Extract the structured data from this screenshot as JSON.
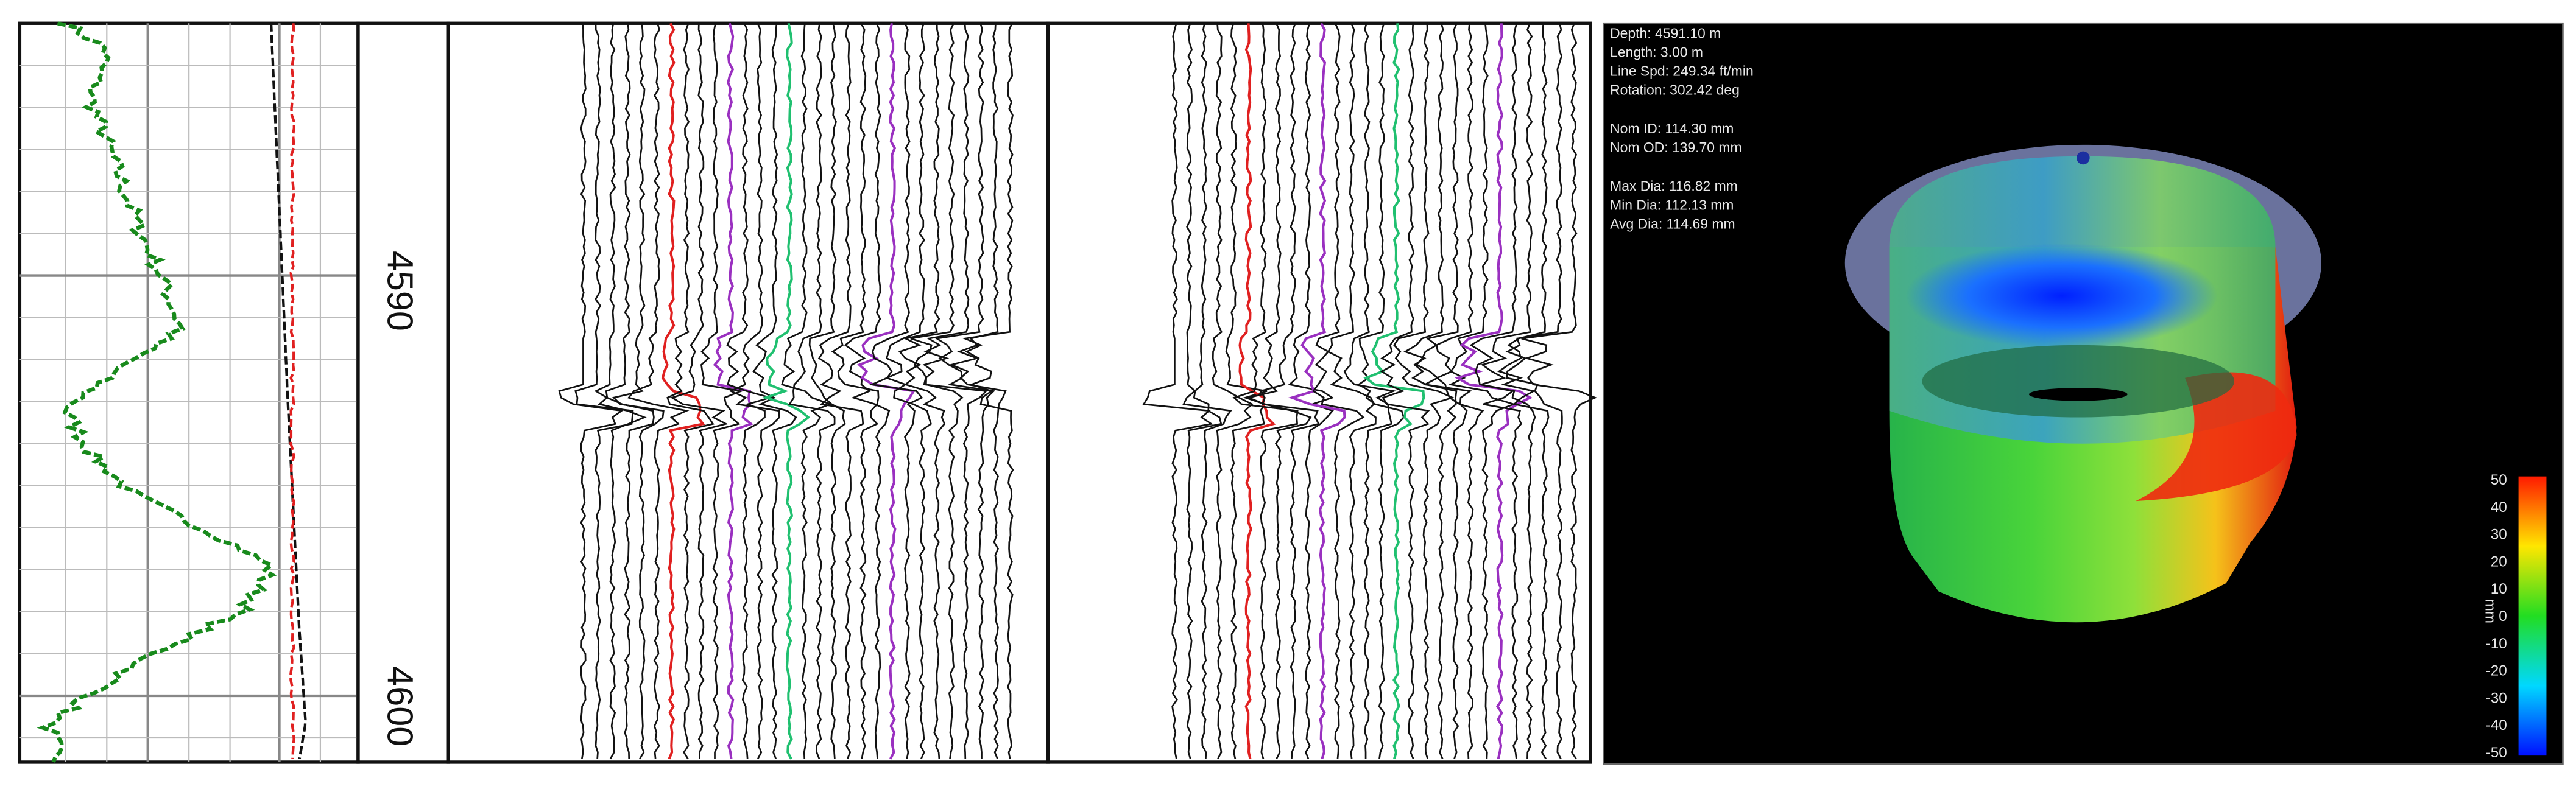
{
  "depth_track": {
    "labels": [
      "4590",
      "4600"
    ]
  },
  "viewer": {
    "info": [
      [
        "Depth: 4591.10 m",
        "Length: 3.00 m",
        "Line Spd: 249.34 ft/min",
        "Rotation: 302.42 deg"
      ],
      [
        "Nom ID: 114.30 mm",
        "Nom OD: 139.70 mm"
      ],
      [
        "Max Dia: 116.82 mm",
        "Min Dia: 112.13 mm",
        "Avg Dia: 114.69 mm"
      ]
    ],
    "colorbar": {
      "labels": [
        "50",
        "40",
        "30",
        "20",
        "10",
        "0",
        "-10",
        "-20",
        "-30",
        "-40",
        "-50"
      ],
      "unit": "mm"
    }
  }
}
